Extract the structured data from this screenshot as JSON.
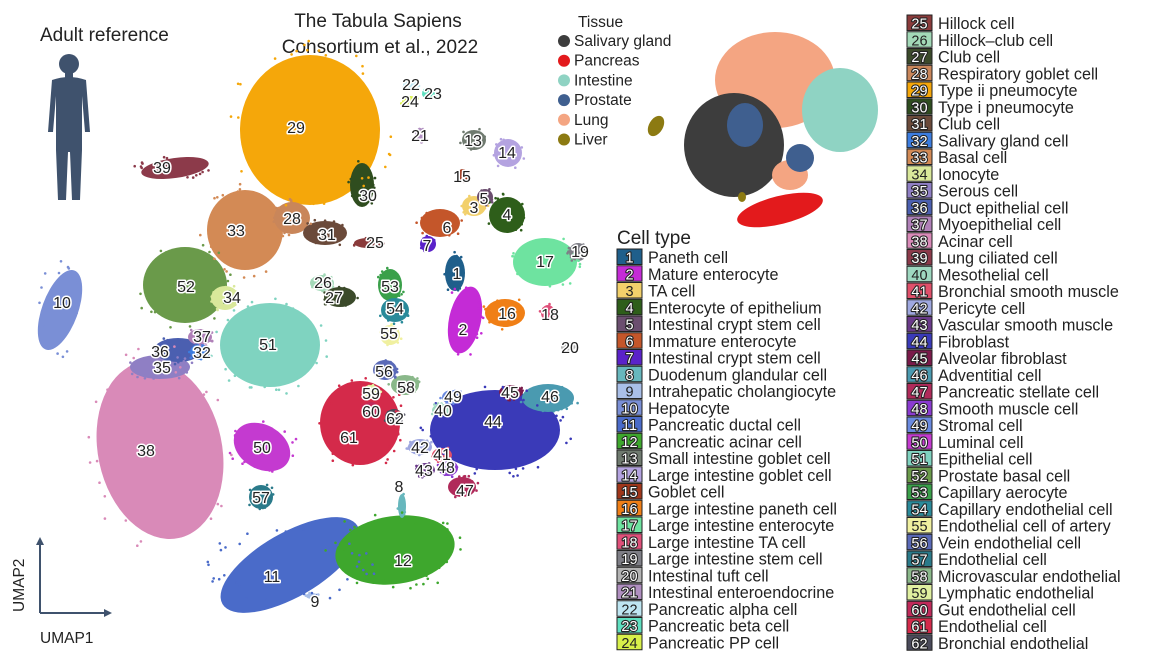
{
  "figure": {
    "reference_label": "Adult reference",
    "title_line1": "The Tabula Sapiens",
    "title_line2": "Consortium et al., 2022",
    "axis_x": "UMAP1",
    "axis_y": "UMAP2",
    "tissue_legend_title": "Tissue",
    "celltype_legend_title": "Cell type"
  },
  "chart_data": {
    "type": "scatter",
    "title": "The Tabula Sapiens Consortium et al., 2022",
    "xlabel": "UMAP1",
    "ylabel": "UMAP2",
    "grid": false,
    "tissues": [
      {
        "name": "Salivary gland",
        "color": "#3d3d3d"
      },
      {
        "name": "Pancreas",
        "color": "#e31a1c"
      },
      {
        "name": "Intestine",
        "color": "#8fd3c3"
      },
      {
        "name": "Prostate",
        "color": "#3f5f8f"
      },
      {
        "name": "Lung",
        "color": "#f4a582"
      },
      {
        "name": "Liver",
        "color": "#8c7a12"
      }
    ],
    "cell_types": [
      {
        "id": "1",
        "name": "Paneth cell",
        "color": "#1f5f8b"
      },
      {
        "id": "2",
        "name": "Mature enterocyte",
        "color": "#c42bd6"
      },
      {
        "id": "3",
        "name": "TA cell",
        "color": "#f2d06b"
      },
      {
        "id": "4",
        "name": "Enterocyte of epithelium",
        "color": "#2e5e1a"
      },
      {
        "id": "5",
        "name": "Intestinal crypt stem cell",
        "color": "#6b4e6f"
      },
      {
        "id": "6",
        "name": "Immature enterocyte",
        "color": "#c4562a"
      },
      {
        "id": "7",
        "name": "Intestinal crypt stem cell",
        "color": "#5a22c9"
      },
      {
        "id": "8",
        "name": "Duodenum glandular cell",
        "color": "#67b7bd"
      },
      {
        "id": "9",
        "name": "Intrahepatic cholangiocyte",
        "color": "#a9bfe8"
      },
      {
        "id": "10",
        "name": "Hepatocyte",
        "color": "#7a8fd6"
      },
      {
        "id": "11",
        "name": "Pancreatic ductal cell",
        "color": "#4a6bc9"
      },
      {
        "id": "12",
        "name": "Pancreatic acinar cell",
        "color": "#3ea72d"
      },
      {
        "id": "13",
        "name": "Small intestine goblet cell",
        "color": "#6f7a6f"
      },
      {
        "id": "14",
        "name": "Large intestine goblet cell",
        "color": "#b4a3e0"
      },
      {
        "id": "15",
        "name": "Goblet cell",
        "color": "#a0361a"
      },
      {
        "id": "16",
        "name": "Large intestine paneth cell",
        "color": "#f07f16"
      },
      {
        "id": "17",
        "name": "Large intestine enterocyte",
        "color": "#6ee3a0"
      },
      {
        "id": "18",
        "name": "Large intestine TA cell",
        "color": "#e0507a"
      },
      {
        "id": "19",
        "name": "Large intestine stem cell",
        "color": "#7e7e86"
      },
      {
        "id": "20",
        "name": "Intestinal tuft cell",
        "color": "#b3b3b3"
      },
      {
        "id": "21",
        "name": "Intestinal enteroendocrine",
        "color": "#b08fc0"
      },
      {
        "id": "22",
        "name": "Pancreatic alpha cell",
        "color": "#bfe6f2"
      },
      {
        "id": "23",
        "name": "Pancreatic beta cell",
        "color": "#5fdfc0"
      },
      {
        "id": "24",
        "name": "Pancreatic PP cell",
        "color": "#d8f04a"
      },
      {
        "id": "25",
        "name": "Hillock cell",
        "color": "#8a3b3b"
      },
      {
        "id": "26",
        "name": "Hillock–club cell",
        "color": "#a3d9b8"
      },
      {
        "id": "27",
        "name": "Club cell",
        "color": "#3b4a2a"
      },
      {
        "id": "28",
        "name": "Respiratory goblet cell",
        "color": "#c9865a"
      },
      {
        "id": "29",
        "name": "Type ii pneumocyte",
        "color": "#f5a70a"
      },
      {
        "id": "30",
        "name": "Type i pneumocyte",
        "color": "#2f4d1f"
      },
      {
        "id": "31",
        "name": "Club cell",
        "color": "#6b4a3a"
      },
      {
        "id": "32",
        "name": "Salivary gland cell",
        "color": "#3c7de0"
      },
      {
        "id": "33",
        "name": "Basal cell",
        "color": "#d38a55"
      },
      {
        "id": "34",
        "name": "Ionocyte",
        "color": "#d9e89a"
      },
      {
        "id": "35",
        "name": "Serous cell",
        "color": "#8f7fc4"
      },
      {
        "id": "36",
        "name": "Duct epithelial cell",
        "color": "#4b5fb0"
      },
      {
        "id": "37",
        "name": "Myoepithelial cell",
        "color": "#b080b8"
      },
      {
        "id": "38",
        "name": "Acinar cell",
        "color": "#d98ab8"
      },
      {
        "id": "39",
        "name": "Lung ciliated cell",
        "color": "#8c3a4a"
      },
      {
        "id": "40",
        "name": "Mesothelial cell",
        "color": "#9ed8c0"
      },
      {
        "id": "41",
        "name": "Bronchial smooth muscle",
        "color": "#e0506a"
      },
      {
        "id": "42",
        "name": "Pericyte cell",
        "color": "#9fa8e0"
      },
      {
        "id": "43",
        "name": "Vascular smooth muscle",
        "color": "#6a3a8a"
      },
      {
        "id": "44",
        "name": "Fibroblast",
        "color": "#3a3ab8"
      },
      {
        "id": "45",
        "name": "Alveolar fibroblast",
        "color": "#7a1a4a"
      },
      {
        "id": "46",
        "name": "Adventitial cell",
        "color": "#4a9ab0"
      },
      {
        "id": "47",
        "name": "Pancreatic stellate cell",
        "color": "#b02a5a"
      },
      {
        "id": "48",
        "name": "Smooth muscle cell",
        "color": "#8a3ad0"
      },
      {
        "id": "49",
        "name": "Stromal cell",
        "color": "#6a8ae0"
      },
      {
        "id": "50",
        "name": "Luminal cell",
        "color": "#c43ad0"
      },
      {
        "id": "51",
        "name": "Epithelial cell",
        "color": "#7fd3c0"
      },
      {
        "id": "52",
        "name": "Prostate basal cell",
        "color": "#6a9a4a"
      },
      {
        "id": "53",
        "name": "Capillary aerocyte",
        "color": "#3aa04a"
      },
      {
        "id": "54",
        "name": "Capillary endothelial cell",
        "color": "#2a8a9a"
      },
      {
        "id": "55",
        "name": "Endothelial cell of artery",
        "color": "#f0f0a0"
      },
      {
        "id": "56",
        "name": "Vein endothelial cell",
        "color": "#5a6ab8"
      },
      {
        "id": "57",
        "name": "Endothelial cell",
        "color": "#2a7a8a"
      },
      {
        "id": "58",
        "name": "Microvascular endothelial",
        "color": "#8ab88a"
      },
      {
        "id": "59",
        "name": "Lymphatic endothelial",
        "color": "#e0f0a0"
      },
      {
        "id": "60",
        "name": "Gut endothelial cell",
        "color": "#c02a5a"
      },
      {
        "id": "61",
        "name": "Endothelial cell",
        "color": "#d42a4a"
      },
      {
        "id": "62",
        "name": "Bronchial endothelial",
        "color": "#4a4a5a"
      }
    ],
    "cluster_labels": [
      "1",
      "2",
      "3",
      "4",
      "5",
      "6",
      "7",
      "8",
      "9",
      "10",
      "11",
      "12",
      "13",
      "14",
      "15",
      "16",
      "17",
      "18",
      "19",
      "20",
      "21",
      "22",
      "23",
      "24",
      "25",
      "26",
      "27",
      "28",
      "29",
      "30",
      "31",
      "32",
      "33",
      "34",
      "35",
      "36",
      "37",
      "38",
      "39",
      "40",
      "41",
      "42",
      "43",
      "44",
      "45",
      "46",
      "47",
      "48",
      "49",
      "50",
      "51",
      "52",
      "53",
      "54",
      "55",
      "56",
      "57",
      "58",
      "59",
      "60",
      "61",
      "62"
    ]
  }
}
